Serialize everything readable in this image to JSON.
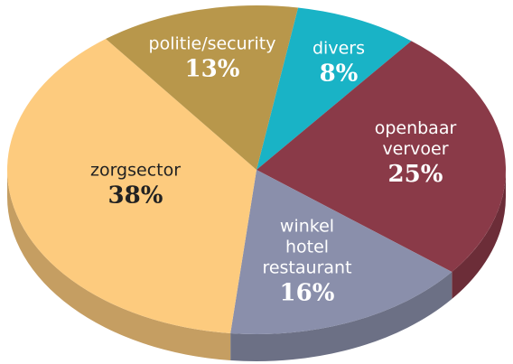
{
  "chart_data": {
    "type": "pie",
    "categories": [
      "divers",
      "openbaar vervoer",
      "winkel hotel restaurant",
      "zorgsector",
      "politie/security"
    ],
    "values": [
      8,
      25,
      16,
      38,
      13
    ],
    "value_labels": [
      "8%",
      "25%",
      "16%",
      "38%",
      "13%"
    ],
    "colors": [
      "#19b3c6",
      "#8a3a48",
      "#8a8fab",
      "#fdcb7e",
      "#b8974b"
    ]
  }
}
